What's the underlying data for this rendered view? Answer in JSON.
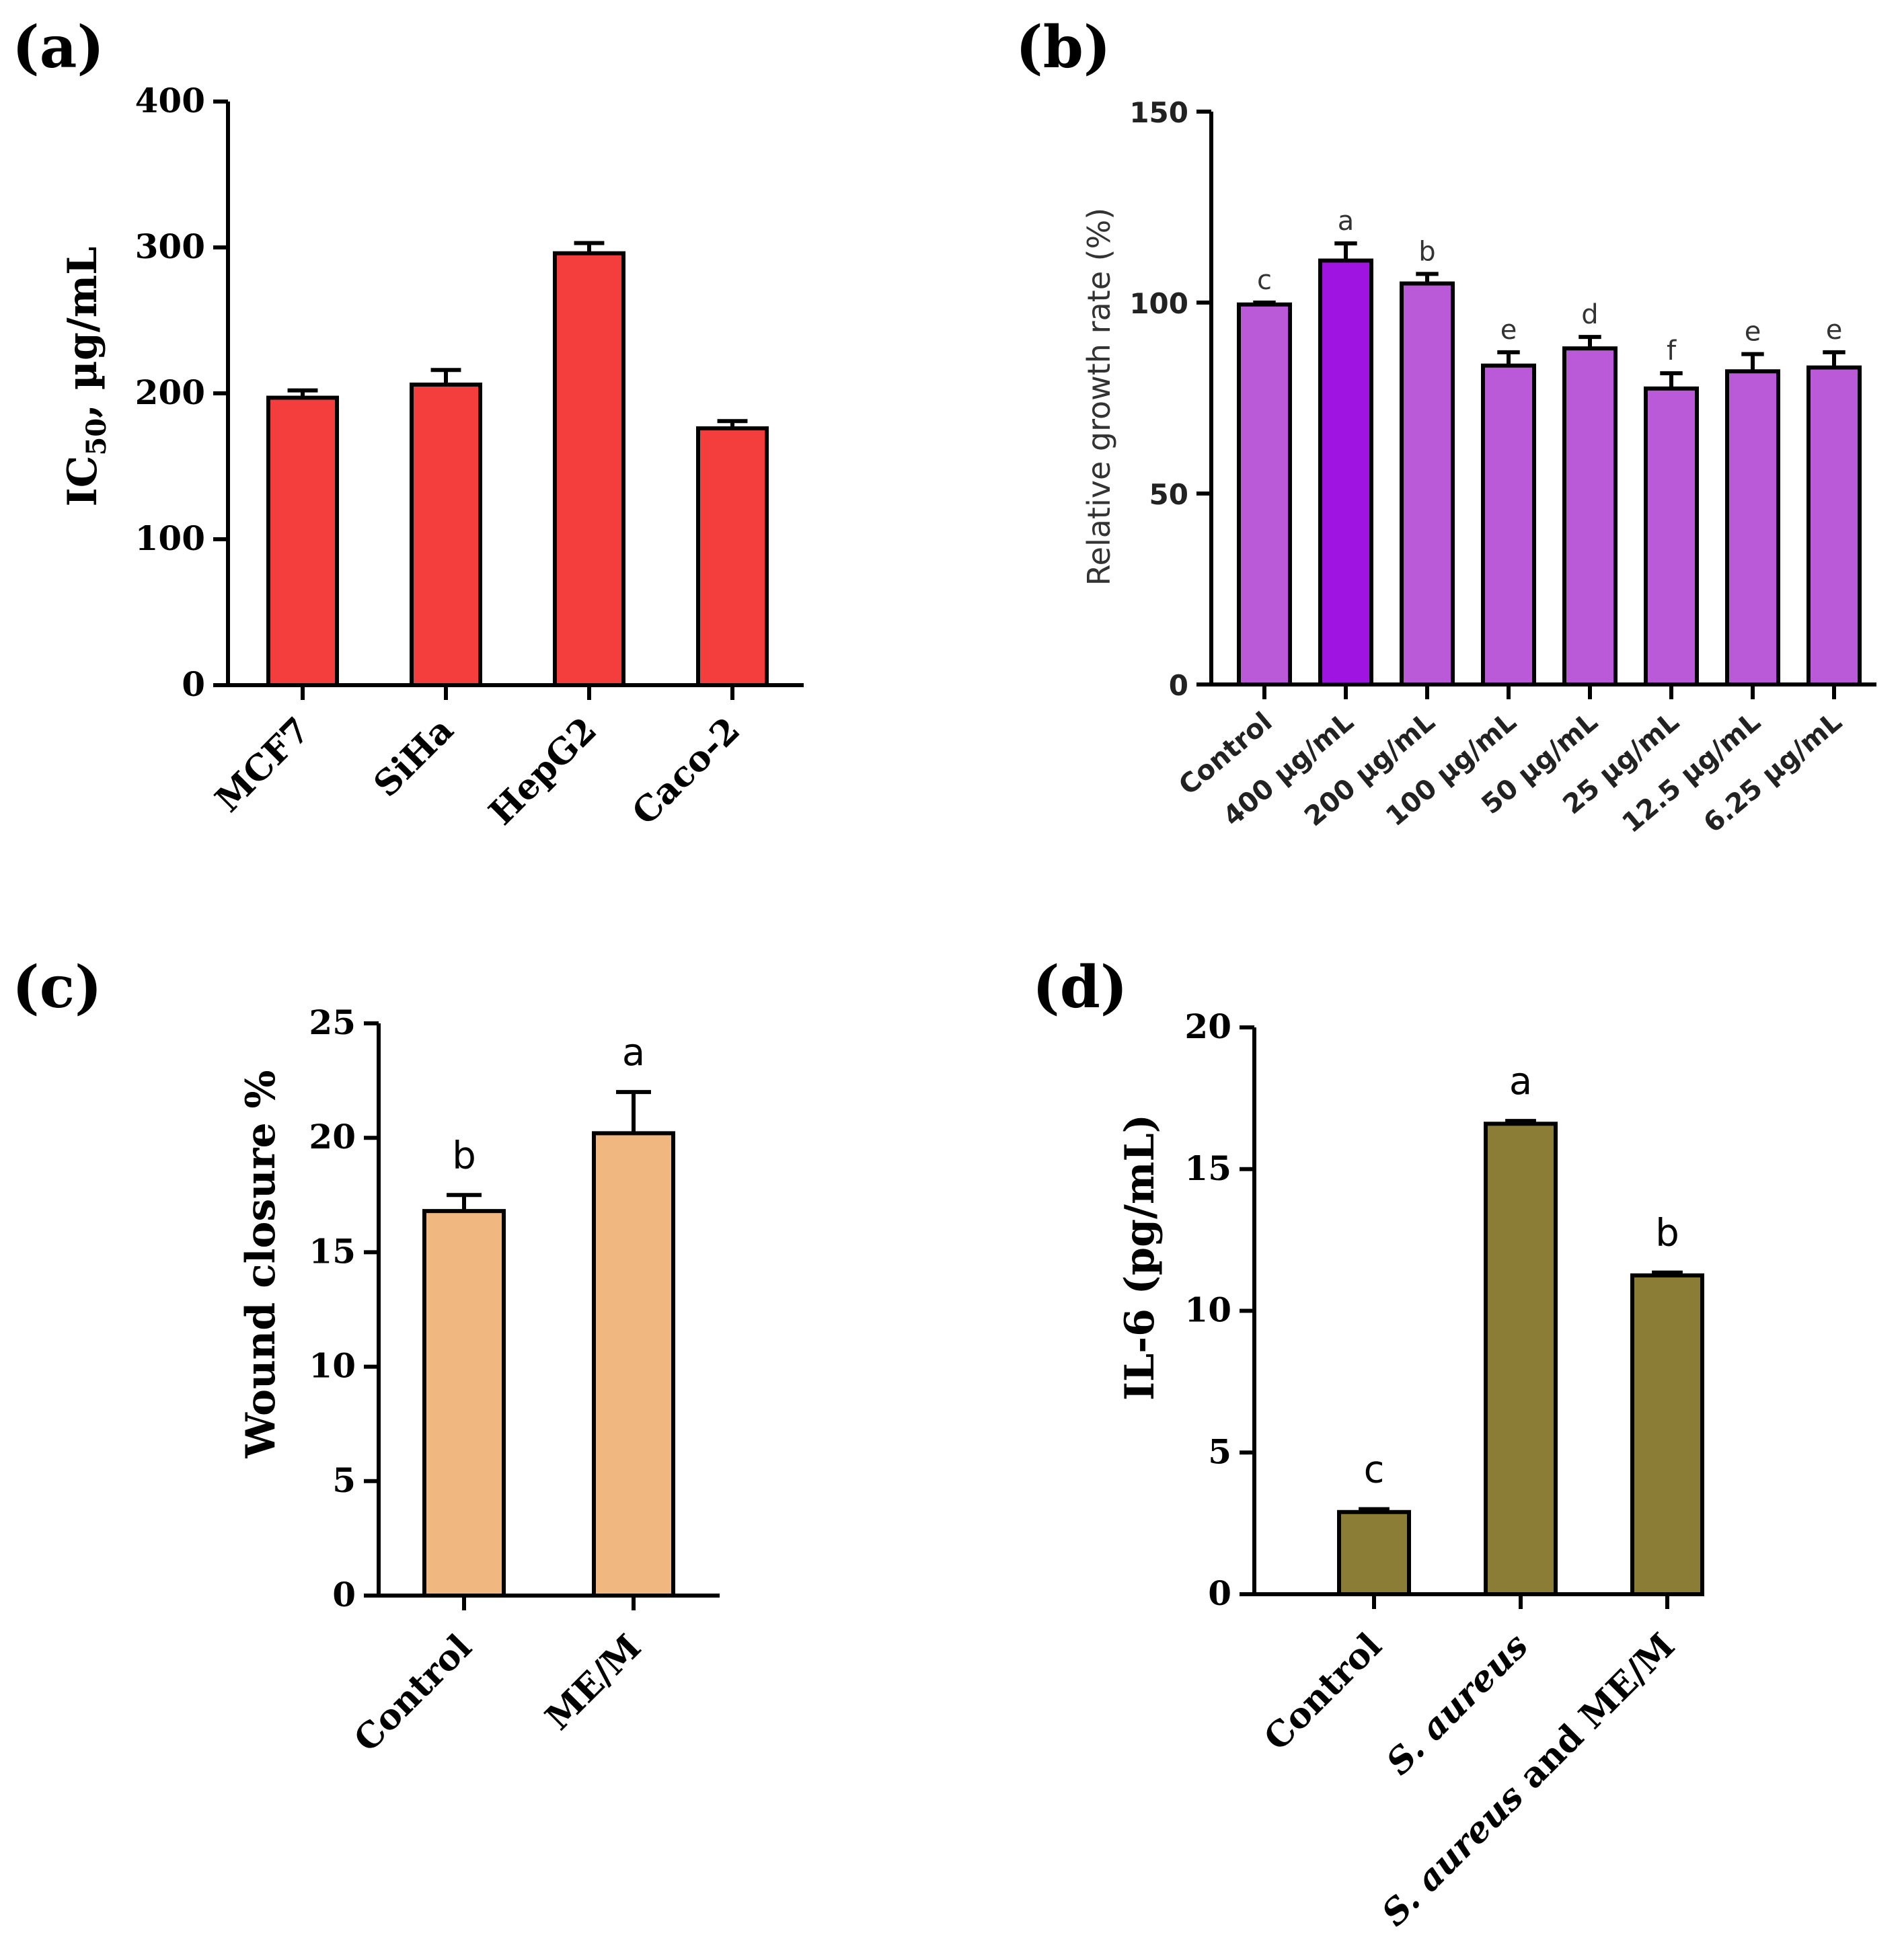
{
  "colors": {
    "a": "#f43e3e",
    "b": "#bb5ad8",
    "b_highlight": "#9f14e0",
    "c": "#f0b780",
    "d": "#8b7c36",
    "stroke": "#000000"
  },
  "chart_data": [
    {
      "panel": "(a)",
      "type": "bar",
      "title": "",
      "xlabel": "",
      "ylabel": "IC50, µg/mL",
      "ylabel_main": "IC",
      "ylabel_sub": "50",
      "ylabel_rest": ", µg/mL",
      "ylim": [
        0,
        400
      ],
      "yticks": [
        0,
        100,
        200,
        300,
        400
      ],
      "categories": [
        "MCF7",
        "SiHa",
        "HepG2",
        "Caco-2"
      ],
      "values": [
        197,
        206,
        296,
        176
      ],
      "errors": [
        5,
        10,
        7,
        5
      ],
      "letters": []
    },
    {
      "panel": "(b)",
      "type": "bar",
      "title": "",
      "xlabel": "",
      "ylabel": "Relative growth rate (%)",
      "ylim": [
        0,
        150
      ],
      "yticks": [
        0,
        50,
        100,
        150
      ],
      "categories": [
        "Control",
        "400 µg/mL",
        "200 µg/mL",
        "100 µg/mL",
        "50 µg/mL",
        "25 µg/mL",
        "12.5 µg/mL",
        "6.25 µg/mL"
      ],
      "values": [
        99.5,
        111,
        105,
        83.5,
        88,
        77.5,
        82,
        83
      ],
      "errors": [
        0.5,
        4.5,
        2.5,
        3.5,
        3,
        4,
        4.5,
        4
      ],
      "letters": [
        "c",
        "a",
        "b",
        "e",
        "d",
        "f",
        "e",
        "e"
      ]
    },
    {
      "panel": "(c)",
      "type": "bar",
      "title": "",
      "xlabel": "",
      "ylabel": "Wound closure %",
      "ylim": [
        0,
        25
      ],
      "yticks": [
        0,
        5,
        10,
        15,
        20,
        25
      ],
      "categories": [
        "Control",
        "ME/M"
      ],
      "values": [
        16.8,
        20.2
      ],
      "errors": [
        0.7,
        1.8
      ],
      "letters": [
        "b",
        "a"
      ]
    },
    {
      "panel": "(d)",
      "type": "bar",
      "title": "",
      "xlabel": "",
      "ylabel": "IL-6 (pg/mL)",
      "ylim": [
        0,
        20
      ],
      "yticks": [
        0,
        5,
        10,
        15,
        20
      ],
      "categories": [
        "Control",
        "S. aureus",
        "S. aureus and ME/M"
      ],
      "values": [
        2.9,
        16.6,
        11.25
      ],
      "errors": [
        0.1,
        0.1,
        0.1
      ],
      "letters": [
        "c",
        "a",
        "b"
      ]
    }
  ]
}
